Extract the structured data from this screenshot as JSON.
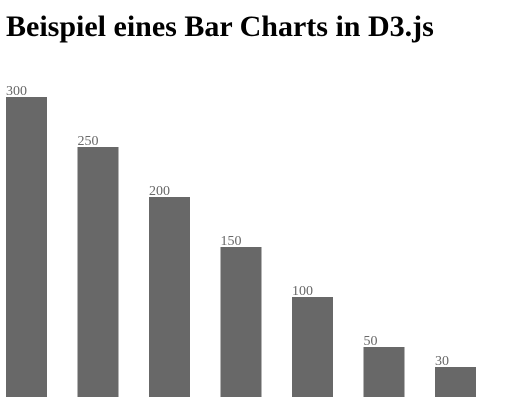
{
  "page": {
    "title": "Beispiel eines Bar Charts in D3.js"
  },
  "chart_data": {
    "type": "bar",
    "values": [
      300,
      250,
      200,
      150,
      100,
      50,
      30
    ],
    "value_labels": [
      "300",
      "250",
      "200",
      "150",
      "100",
      "50",
      "30"
    ],
    "grid": false,
    "axes": false,
    "colors": {
      "bar": "#686868",
      "label": "#686868"
    }
  }
}
